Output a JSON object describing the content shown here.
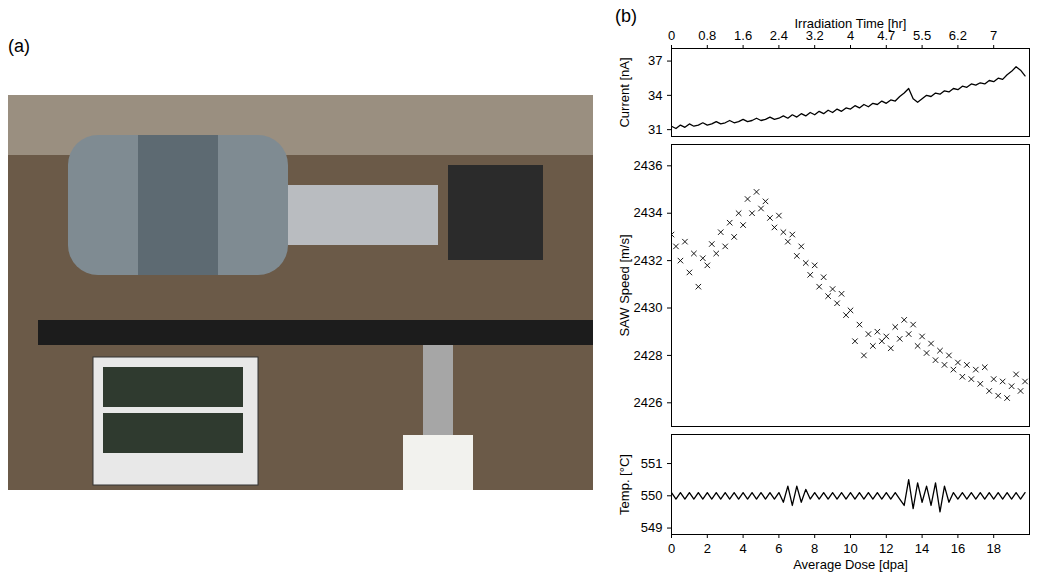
{
  "panel_labels": [
    "(a)",
    "(b)"
  ],
  "chart_data": [
    {
      "type": "line",
      "x2label": "Irradiation Time [hr]",
      "ylabel": "Current [nA]",
      "color": "#000000",
      "x": [
        0,
        0.25,
        0.5,
        0.75,
        1,
        1.25,
        1.5,
        1.75,
        2,
        2.25,
        2.5,
        2.75,
        3,
        3.25,
        3.5,
        3.75,
        4,
        4.25,
        4.5,
        4.75,
        5,
        5.25,
        5.5,
        5.75,
        6,
        6.25,
        6.5,
        6.75,
        7,
        7.25,
        7.5,
        7.75,
        8,
        8.25,
        8.5,
        8.75,
        9,
        9.25,
        9.5,
        9.75,
        10,
        10.25,
        10.5,
        10.75,
        11,
        11.25,
        11.5,
        11.75,
        12,
        12.25,
        12.5,
        12.75,
        13,
        13.25,
        13.5,
        13.75,
        14,
        14.25,
        14.5,
        14.75,
        15,
        15.25,
        15.5,
        15.75,
        16,
        16.25,
        16.5,
        16.75,
        17,
        17.25,
        17.5,
        17.75,
        18,
        18.25,
        18.5,
        18.75,
        19,
        19.25,
        19.5,
        19.75
      ],
      "values": [
        31.3,
        31.1,
        31.4,
        31.2,
        31.5,
        31.3,
        31.4,
        31.6,
        31.4,
        31.5,
        31.7,
        31.5,
        31.6,
        31.8,
        31.6,
        31.7,
        31.9,
        31.7,
        31.8,
        32.0,
        31.8,
        31.9,
        32.1,
        31.9,
        32.0,
        32.2,
        32.0,
        32.3,
        32.1,
        32.4,
        32.2,
        32.5,
        32.3,
        32.6,
        32.4,
        32.7,
        32.5,
        32.8,
        32.6,
        32.9,
        32.8,
        33.1,
        32.9,
        33.2,
        33.0,
        33.3,
        33.2,
        33.5,
        33.3,
        33.6,
        33.5,
        33.9,
        34.2,
        34.6,
        33.7,
        33.4,
        33.7,
        34.0,
        33.9,
        34.2,
        34.1,
        34.4,
        34.3,
        34.6,
        34.5,
        34.8,
        34.7,
        35.0,
        34.9,
        35.1,
        35.0,
        35.3,
        35.2,
        35.5,
        35.4,
        35.8,
        36.1,
        36.5,
        36.2,
        35.7
      ],
      "xlim": [
        0,
        20
      ],
      "x2ticks": [
        {
          "value": 0,
          "label": "0"
        },
        {
          "value": 2,
          "label": "0.8"
        },
        {
          "value": 4,
          "label": "1.6"
        },
        {
          "value": 6,
          "label": "2.4"
        },
        {
          "value": 8,
          "label": "3.2"
        },
        {
          "value": 10,
          "label": "4"
        },
        {
          "value": 12,
          "label": "4.7"
        },
        {
          "value": 14,
          "label": "5.5"
        },
        {
          "value": 16,
          "label": "6.2"
        },
        {
          "value": 18,
          "label": "7"
        }
      ],
      "ylim": [
        30.4,
        38.1
      ],
      "yticks": [
        31,
        34,
        37
      ]
    },
    {
      "type": "scatter",
      "ylabel": "SAW Speed [m/s]",
      "color": "#000000",
      "marker": "x",
      "x": [
        0,
        0.25,
        0.5,
        0.75,
        1,
        1.25,
        1.5,
        1.75,
        2,
        2.25,
        2.5,
        2.75,
        3,
        3.25,
        3.5,
        3.75,
        4,
        4.25,
        4.5,
        4.75,
        5,
        5.25,
        5.5,
        5.75,
        6,
        6.25,
        6.5,
        6.75,
        7,
        7.25,
        7.5,
        7.75,
        8,
        8.25,
        8.5,
        8.75,
        9,
        9.25,
        9.5,
        9.75,
        10,
        10.25,
        10.5,
        10.75,
        11,
        11.25,
        11.5,
        11.75,
        12,
        12.25,
        12.5,
        12.75,
        13,
        13.25,
        13.5,
        13.75,
        14,
        14.25,
        14.5,
        14.75,
        15,
        15.25,
        15.5,
        15.75,
        16,
        16.25,
        16.5,
        16.75,
        17,
        17.25,
        17.5,
        17.75,
        18,
        18.25,
        18.5,
        18.75,
        19,
        19.25,
        19.5,
        19.75
      ],
      "values": [
        2433.1,
        2432.6,
        2432.0,
        2432.8,
        2431.5,
        2432.3,
        2430.9,
        2432.1,
        2431.8,
        2432.7,
        2432.3,
        2433.2,
        2432.6,
        2433.6,
        2433.0,
        2434.0,
        2433.5,
        2434.6,
        2434.0,
        2434.9,
        2434.2,
        2434.5,
        2433.8,
        2433.4,
        2433.9,
        2433.2,
        2432.8,
        2433.1,
        2432.2,
        2432.6,
        2431.9,
        2431.4,
        2431.8,
        2430.9,
        2431.3,
        2430.5,
        2430.8,
        2430.2,
        2430.6,
        2429.7,
        2429.9,
        2428.6,
        2429.3,
        2428.0,
        2428.9,
        2428.4,
        2429.0,
        2428.6,
        2428.8,
        2428.3,
        2429.2,
        2428.7,
        2429.5,
        2428.9,
        2429.3,
        2428.4,
        2428.8,
        2428.1,
        2428.5,
        2427.8,
        2428.2,
        2427.6,
        2428.0,
        2427.4,
        2427.7,
        2427.1,
        2427.6,
        2427.0,
        2427.4,
        2426.8,
        2427.5,
        2426.5,
        2427.0,
        2426.3,
        2426.9,
        2426.2,
        2426.7,
        2427.2,
        2426.5,
        2426.9
      ],
      "xlim": [
        0,
        20
      ],
      "ylim": [
        2425,
        2436.9
      ],
      "yticks": [
        2426,
        2428,
        2430,
        2432,
        2434,
        2436
      ]
    },
    {
      "type": "line",
      "xlabel": "Average Dose [dpa]",
      "ylabel": "Temp. [°C]",
      "color": "#000000",
      "x": [
        0,
        0.25,
        0.5,
        0.75,
        1,
        1.25,
        1.5,
        1.75,
        2,
        2.25,
        2.5,
        2.75,
        3,
        3.25,
        3.5,
        3.75,
        4,
        4.25,
        4.5,
        4.75,
        5,
        5.25,
        5.5,
        5.75,
        6,
        6.25,
        6.5,
        6.75,
        7,
        7.25,
        7.5,
        7.75,
        8,
        8.25,
        8.5,
        8.75,
        9,
        9.25,
        9.5,
        9.75,
        10,
        10.25,
        10.5,
        10.75,
        11,
        11.25,
        11.5,
        11.75,
        12,
        12.25,
        12.5,
        12.75,
        13,
        13.25,
        13.5,
        13.75,
        14,
        14.25,
        14.5,
        14.75,
        15,
        15.25,
        15.5,
        15.75,
        16,
        16.25,
        16.5,
        16.75,
        17,
        17.25,
        17.5,
        17.75,
        18,
        18.25,
        18.5,
        18.75,
        19,
        19.25,
        19.5,
        19.75
      ],
      "values": [
        550.1,
        549.9,
        550.1,
        549.9,
        550.1,
        549.9,
        550.1,
        549.9,
        550.1,
        549.9,
        550.1,
        549.9,
        550.1,
        549.9,
        550.1,
        549.9,
        550.1,
        549.9,
        550.1,
        549.9,
        550.1,
        549.9,
        550.1,
        549.9,
        550.1,
        549.8,
        550.3,
        549.7,
        550.3,
        549.8,
        550.2,
        549.9,
        550.1,
        549.9,
        550.1,
        549.9,
        550.1,
        549.9,
        550.1,
        549.9,
        550.1,
        549.9,
        550.1,
        549.9,
        550.1,
        549.9,
        550.1,
        549.9,
        550.1,
        549.9,
        550.1,
        549.9,
        549.7,
        550.5,
        549.6,
        550.4,
        549.8,
        550.3,
        549.7,
        550.4,
        549.5,
        550.3,
        549.8,
        550.1,
        549.9,
        550.1,
        549.9,
        550.1,
        549.9,
        550.1,
        549.9,
        550.1,
        549.9,
        550.1,
        549.9,
        550.1,
        549.9,
        550.1,
        549.9,
        550.1
      ],
      "xlim": [
        0,
        20
      ],
      "xticks": [
        0,
        2,
        4,
        6,
        8,
        10,
        12,
        14,
        16,
        18
      ],
      "ylim": [
        548.8,
        551.9
      ],
      "yticks": [
        549,
        550,
        551
      ]
    }
  ]
}
